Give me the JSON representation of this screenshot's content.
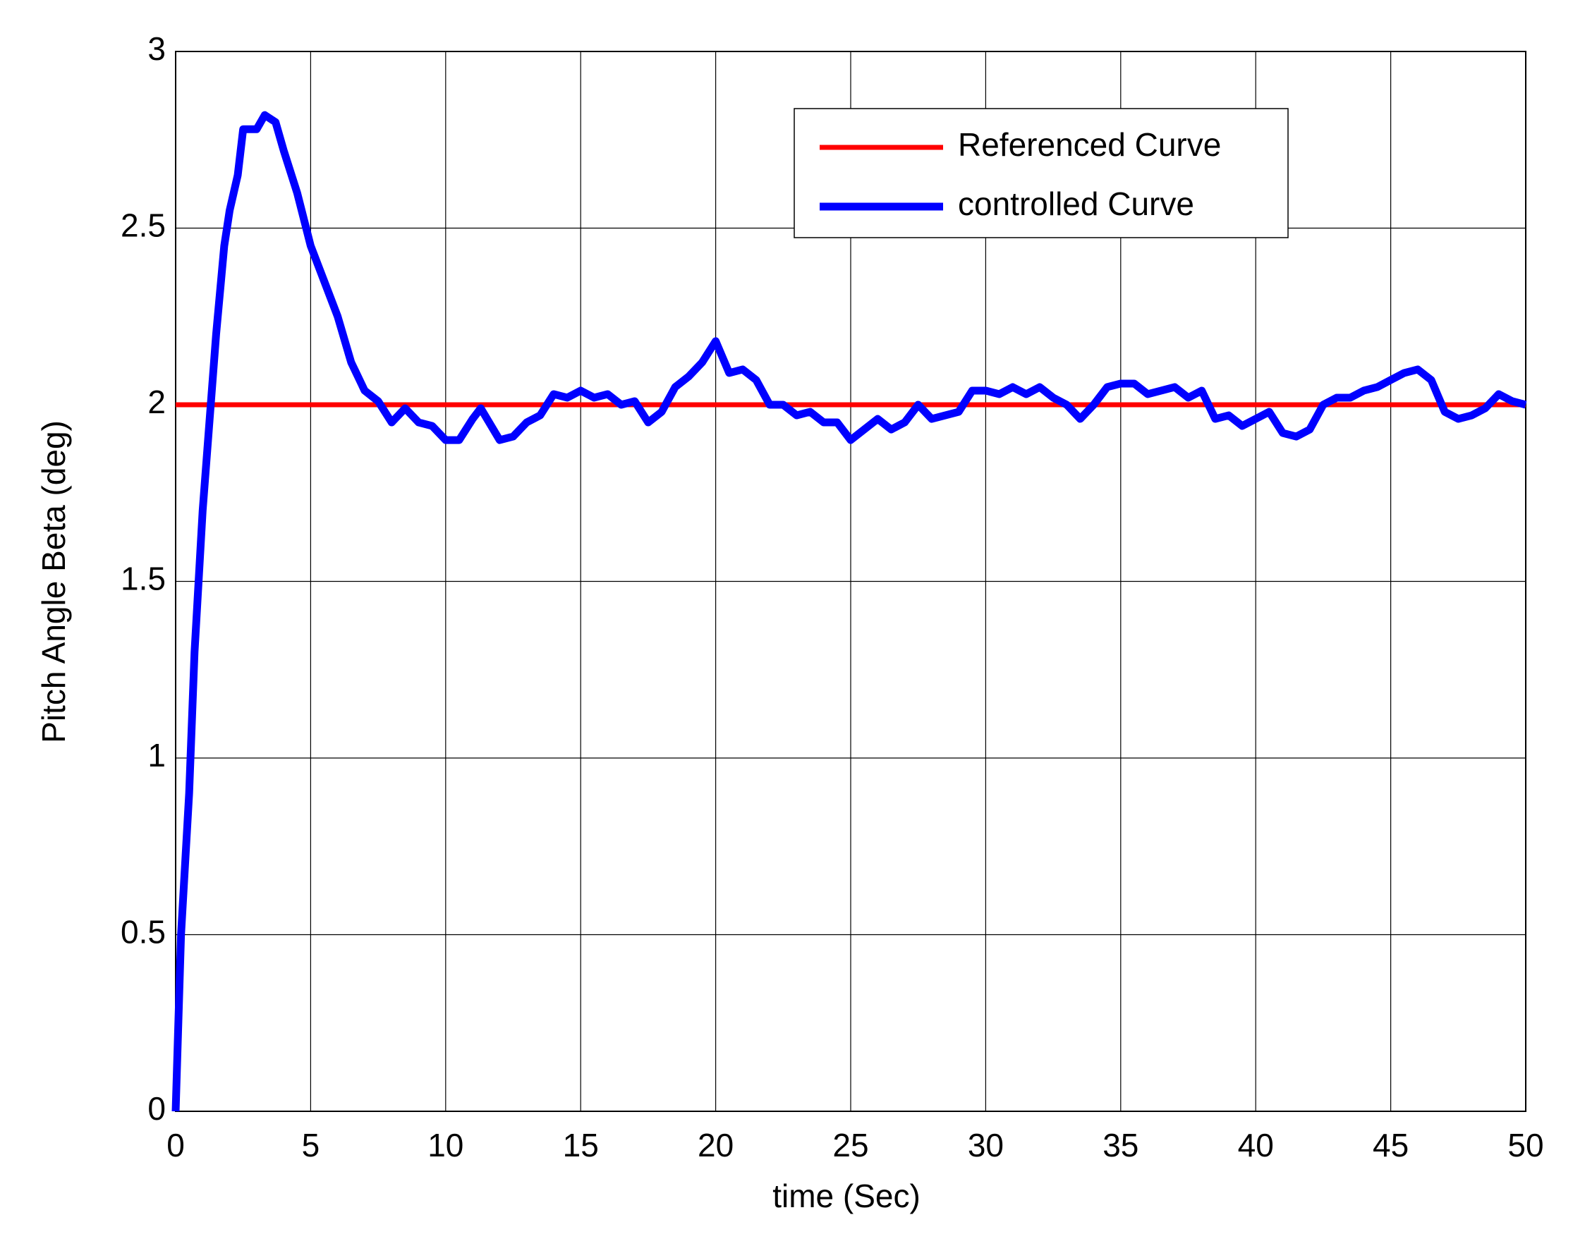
{
  "chart_data": {
    "type": "line",
    "xlabel": "time (Sec)",
    "ylabel": "Pitch Angle Beta (deg)",
    "xlim": [
      0,
      50
    ],
    "ylim": [
      0,
      3
    ],
    "xticks": [
      0,
      5,
      10,
      15,
      20,
      25,
      30,
      35,
      40,
      45,
      50
    ],
    "yticks": [
      0,
      0.5,
      1,
      1.5,
      2,
      2.5,
      3
    ],
    "grid": true,
    "legend": "upper right",
    "series": [
      {
        "name": "Referenced Curve",
        "color": "#ff0000",
        "x": [
          0,
          50
        ],
        "values": [
          2,
          2
        ]
      },
      {
        "name": "controlled Curve",
        "color": "#0000ff",
        "x": [
          0,
          0.2,
          0.5,
          0.7,
          1.0,
          1.3,
          1.5,
          1.8,
          2.0,
          2.3,
          2.5,
          3.0,
          3.3,
          3.7,
          4.0,
          4.5,
          5.0,
          5.5,
          6.0,
          6.5,
          7.0,
          7.5,
          8.0,
          8.5,
          9.0,
          9.5,
          10.0,
          10.5,
          11.0,
          11.3,
          12.0,
          12.5,
          13.0,
          13.5,
          14.0,
          14.5,
          15.0,
          15.5,
          16.0,
          16.5,
          17.0,
          17.5,
          18.0,
          18.5,
          19.0,
          19.5,
          20.0,
          20.5,
          21.0,
          21.5,
          22.0,
          22.5,
          23.0,
          23.5,
          24.0,
          24.5,
          25.0,
          25.5,
          26.0,
          26.5,
          27.0,
          27.5,
          28.0,
          28.5,
          29.0,
          29.5,
          30.0,
          30.5,
          31.0,
          31.5,
          32.0,
          32.5,
          33.0,
          33.5,
          34.0,
          34.5,
          35.0,
          35.5,
          36.0,
          36.5,
          37.0,
          37.5,
          38.0,
          38.5,
          39.0,
          39.5,
          40.0,
          40.5,
          41.0,
          41.5,
          42.0,
          42.5,
          43.0,
          43.5,
          44.0,
          44.5,
          45.0,
          45.5,
          46.0,
          46.5,
          47.0,
          47.5,
          48.0,
          48.5,
          49.0,
          49.5,
          50.0
        ],
        "values": [
          0,
          0.5,
          0.9,
          1.3,
          1.7,
          2.0,
          2.2,
          2.45,
          2.55,
          2.65,
          2.78,
          2.78,
          2.82,
          2.8,
          2.72,
          2.6,
          2.45,
          2.35,
          2.25,
          2.12,
          2.04,
          2.01,
          1.95,
          1.99,
          1.95,
          1.94,
          1.9,
          1.9,
          1.96,
          1.99,
          1.9,
          1.91,
          1.95,
          1.97,
          2.03,
          2.02,
          2.04,
          2.02,
          2.03,
          2.0,
          2.01,
          1.95,
          1.98,
          2.05,
          2.08,
          2.12,
          2.18,
          2.09,
          2.1,
          2.07,
          2.0,
          2.0,
          1.97,
          1.98,
          1.95,
          1.95,
          1.9,
          1.93,
          1.96,
          1.93,
          1.95,
          2.0,
          1.96,
          1.97,
          1.98,
          2.04,
          2.04,
          2.03,
          2.05,
          2.03,
          2.05,
          2.02,
          2.0,
          1.96,
          2.0,
          2.05,
          2.06,
          2.06,
          2.03,
          2.04,
          2.05,
          2.02,
          2.04,
          1.96,
          1.97,
          1.94,
          1.96,
          1.98,
          1.92,
          1.91,
          1.93,
          2.0,
          2.02,
          2.02,
          2.04,
          2.05,
          2.07,
          2.09,
          2.1,
          2.07,
          1.98,
          1.96,
          1.97,
          1.99,
          2.03,
          2.01,
          2.0
        ]
      }
    ]
  }
}
